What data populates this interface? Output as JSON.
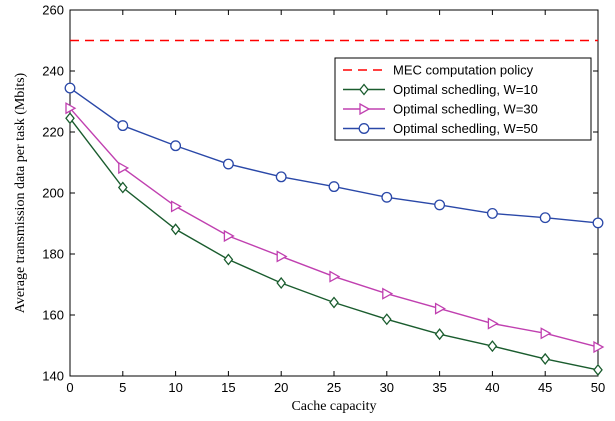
{
  "chart_data": {
    "type": "line",
    "xlabel": "Cache capacity",
    "ylabel": "Average transmission data per task (Mbits)",
    "xlim": [
      0,
      50
    ],
    "ylim": [
      140,
      260
    ],
    "xticks": [
      0,
      5,
      10,
      15,
      20,
      25,
      30,
      35,
      40,
      45,
      50
    ],
    "yticks": [
      140,
      160,
      180,
      200,
      220,
      240,
      260
    ],
    "grid": false,
    "legend_position": "top-right",
    "x": [
      0,
      5,
      10,
      15,
      20,
      25,
      30,
      35,
      40,
      45,
      50
    ],
    "series": [
      {
        "name": "MEC computation policy",
        "color": "#ff0000",
        "line_style": "dashed",
        "marker": "none",
        "values": [
          250,
          250,
          250,
          250,
          250,
          250,
          250,
          250,
          250,
          250,
          250
        ]
      },
      {
        "name": "Optimal schedling, W=10",
        "color": "#1a5c2e",
        "line_style": "solid",
        "marker": "diamond",
        "values": [
          224.5,
          201.8,
          188.1,
          178.2,
          170.5,
          164.1,
          158.6,
          153.7,
          149.8,
          145.6,
          142.0
        ]
      },
      {
        "name": "Optimal schedling, W=30",
        "color": "#c040b0",
        "line_style": "solid",
        "marker": "triangle-right",
        "values": [
          227.8,
          208.2,
          195.6,
          185.9,
          179.2,
          172.6,
          167.0,
          162.1,
          157.2,
          154.0,
          149.5
        ]
      },
      {
        "name": "Optimal schedling, W=50",
        "color": "#2a48a8",
        "line_style": "solid",
        "marker": "circle",
        "values": [
          234.4,
          222.1,
          215.5,
          209.5,
          205.3,
          202.1,
          198.6,
          196.1,
          193.3,
          191.9,
          190.2
        ]
      }
    ]
  }
}
